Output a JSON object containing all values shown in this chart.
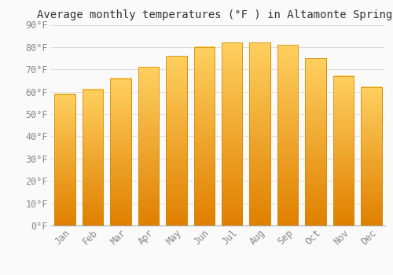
{
  "title": "Average monthly temperatures (°F ) in Altamonte Springs",
  "months": [
    "Jan",
    "Feb",
    "Mar",
    "Apr",
    "May",
    "Jun",
    "Jul",
    "Aug",
    "Sep",
    "Oct",
    "Nov",
    "Dec"
  ],
  "temperatures": [
    59,
    61,
    66,
    71,
    76,
    80,
    82,
    82,
    81,
    75,
    67,
    62
  ],
  "bar_color_top": "#FFC04C",
  "bar_color_bottom": "#F08000",
  "bar_edge_color": "#CC8800",
  "ylim": [
    0,
    90
  ],
  "yticks": [
    0,
    10,
    20,
    30,
    40,
    50,
    60,
    70,
    80,
    90
  ],
  "ytick_labels": [
    "0°F",
    "10°F",
    "20°F",
    "30°F",
    "40°F",
    "50°F",
    "60°F",
    "70°F",
    "80°F",
    "90°F"
  ],
  "background_color": "#FAFAFA",
  "grid_color": "#DDDDDD",
  "title_fontsize": 10,
  "tick_fontsize": 8.5,
  "font_family": "monospace"
}
